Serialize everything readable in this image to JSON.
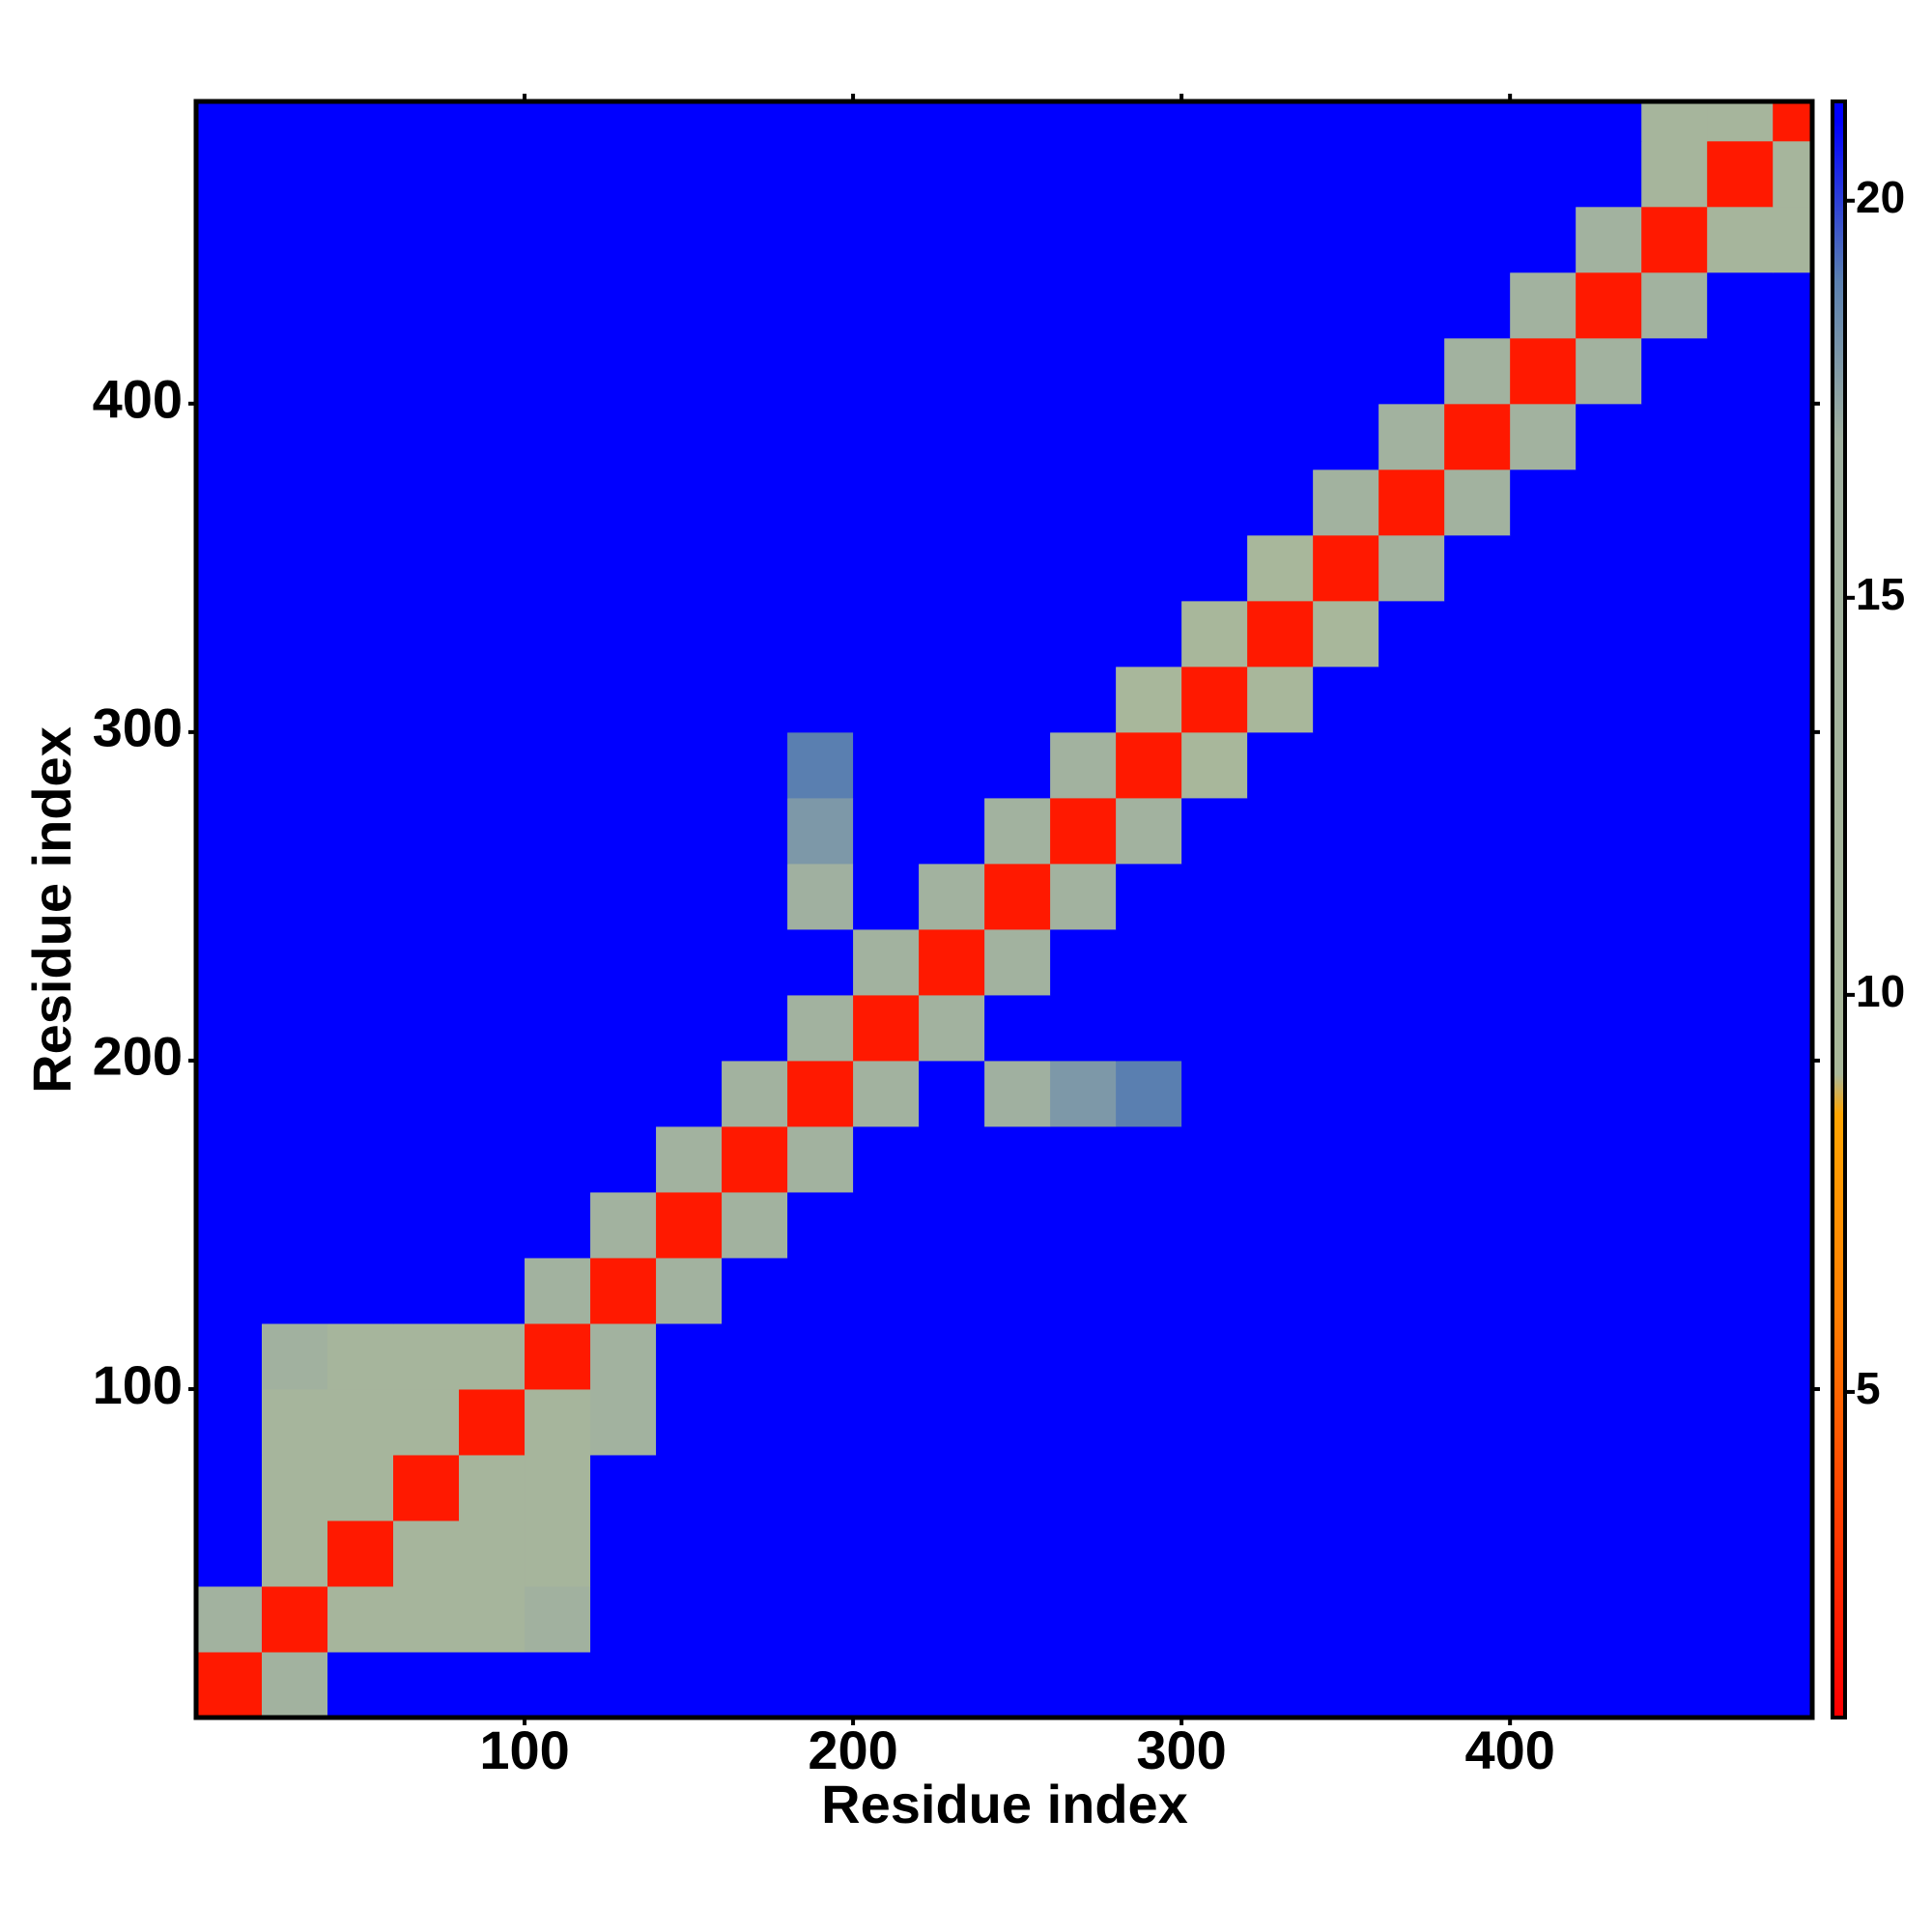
{
  "chart_data": {
    "type": "heatmap",
    "xlabel": "Residue index",
    "ylabel": "Residue index",
    "xlim": [
      0,
      492
    ],
    "ylim": [
      0,
      492
    ],
    "xticks": [
      100,
      200,
      300,
      400
    ],
    "yticks": [
      100,
      200,
      300,
      400
    ],
    "bins": [
      0,
      20,
      40,
      60,
      80,
      100,
      120,
      140,
      160,
      180,
      200,
      220,
      240,
      260,
      280,
      300,
      320,
      340,
      360,
      380,
      400,
      420,
      440,
      460,
      480,
      492
    ],
    "values": [
      [
        2,
        15,
        21,
        21,
        21,
        21,
        21,
        21,
        21,
        21,
        21,
        21,
        21,
        21,
        21,
        21,
        21,
        21,
        21,
        21,
        21,
        21,
        21,
        21,
        21
      ],
      [
        15,
        2,
        12,
        12,
        12,
        16,
        21,
        21,
        21,
        21,
        21,
        21,
        21,
        21,
        21,
        21,
        21,
        21,
        21,
        21,
        21,
        21,
        21,
        21,
        21
      ],
      [
        21,
        12,
        2,
        12,
        12,
        12,
        21,
        21,
        21,
        21,
        21,
        21,
        21,
        21,
        21,
        21,
        21,
        21,
        21,
        21,
        21,
        21,
        21,
        21,
        21
      ],
      [
        21,
        12,
        12,
        2,
        12,
        12,
        21,
        21,
        21,
        21,
        21,
        21,
        21,
        21,
        21,
        21,
        21,
        21,
        21,
        21,
        21,
        21,
        21,
        21,
        21
      ],
      [
        21,
        12,
        12,
        12,
        2,
        12,
        15,
        21,
        21,
        21,
        21,
        21,
        21,
        21,
        21,
        21,
        21,
        21,
        21,
        21,
        21,
        21,
        21,
        21,
        21
      ],
      [
        21,
        16,
        12,
        12,
        12,
        2,
        15,
        21,
        21,
        21,
        21,
        21,
        21,
        21,
        21,
        21,
        21,
        21,
        21,
        21,
        21,
        21,
        21,
        21,
        21
      ],
      [
        21,
        21,
        21,
        21,
        21,
        15,
        2,
        15,
        21,
        21,
        21,
        21,
        21,
        21,
        21,
        21,
        21,
        21,
        21,
        21,
        21,
        21,
        21,
        21,
        21
      ],
      [
        21,
        21,
        21,
        21,
        21,
        21,
        15,
        2,
        15,
        21,
        21,
        21,
        21,
        21,
        21,
        21,
        21,
        21,
        21,
        21,
        21,
        21,
        21,
        21,
        21
      ],
      [
        21,
        21,
        21,
        21,
        21,
        21,
        21,
        15,
        2,
        15,
        21,
        21,
        21,
        21,
        21,
        21,
        21,
        21,
        21,
        21,
        21,
        21,
        21,
        21,
        21
      ],
      [
        21,
        21,
        21,
        21,
        21,
        21,
        21,
        21,
        15,
        2,
        15,
        21,
        17,
        18,
        19,
        21,
        21,
        21,
        21,
        21,
        21,
        21,
        21,
        21,
        21
      ],
      [
        21,
        21,
        21,
        21,
        21,
        21,
        21,
        21,
        21,
        15,
        2,
        15,
        21,
        21,
        21,
        21,
        21,
        21,
        21,
        21,
        21,
        21,
        21,
        21,
        21
      ],
      [
        21,
        21,
        21,
        21,
        21,
        21,
        21,
        21,
        21,
        21,
        15,
        2,
        15,
        21,
        21,
        21,
        21,
        21,
        21,
        21,
        21,
        21,
        21,
        21,
        21
      ],
      [
        21,
        21,
        21,
        21,
        21,
        21,
        21,
        21,
        21,
        17,
        21,
        15,
        2,
        15,
        21,
        21,
        21,
        21,
        21,
        21,
        21,
        21,
        21,
        21,
        21
      ],
      [
        21,
        21,
        21,
        21,
        21,
        21,
        21,
        21,
        21,
        18,
        21,
        21,
        15,
        2,
        15,
        21,
        21,
        21,
        21,
        21,
        21,
        21,
        21,
        21,
        21
      ],
      [
        21,
        21,
        21,
        21,
        21,
        21,
        21,
        21,
        21,
        19,
        21,
        21,
        21,
        15,
        2,
        10,
        21,
        21,
        21,
        21,
        21,
        21,
        21,
        21,
        21
      ],
      [
        21,
        21,
        21,
        21,
        21,
        21,
        21,
        21,
        21,
        21,
        21,
        21,
        21,
        21,
        10,
        2,
        10,
        21,
        21,
        21,
        21,
        21,
        21,
        21,
        21
      ],
      [
        21,
        21,
        21,
        21,
        21,
        21,
        21,
        21,
        21,
        21,
        21,
        21,
        21,
        21,
        21,
        10,
        2,
        10,
        21,
        21,
        21,
        21,
        21,
        21,
        21
      ],
      [
        21,
        21,
        21,
        21,
        21,
        21,
        21,
        21,
        21,
        21,
        21,
        21,
        21,
        21,
        21,
        21,
        10,
        2,
        15,
        21,
        21,
        21,
        21,
        21,
        21
      ],
      [
        21,
        21,
        21,
        21,
        21,
        21,
        21,
        21,
        21,
        21,
        21,
        21,
        21,
        21,
        21,
        21,
        21,
        15,
        2,
        15,
        21,
        21,
        21,
        21,
        21
      ],
      [
        21,
        21,
        21,
        21,
        21,
        21,
        21,
        21,
        21,
        21,
        21,
        21,
        21,
        21,
        21,
        21,
        21,
        21,
        15,
        2,
        15,
        21,
        21,
        21,
        21
      ],
      [
        21,
        21,
        21,
        21,
        21,
        21,
        21,
        21,
        21,
        21,
        21,
        21,
        21,
        21,
        21,
        21,
        21,
        21,
        21,
        15,
        2,
        15,
        21,
        21,
        21
      ],
      [
        21,
        21,
        21,
        21,
        21,
        21,
        21,
        21,
        21,
        21,
        21,
        21,
        21,
        21,
        21,
        21,
        21,
        21,
        21,
        21,
        15,
        2,
        15,
        21,
        21
      ],
      [
        21,
        21,
        21,
        21,
        21,
        21,
        21,
        21,
        21,
        21,
        21,
        21,
        21,
        21,
        21,
        21,
        21,
        21,
        21,
        21,
        21,
        15,
        2,
        12,
        12
      ],
      [
        21,
        21,
        21,
        21,
        21,
        21,
        21,
        21,
        21,
        21,
        21,
        21,
        21,
        21,
        21,
        21,
        21,
        21,
        21,
        21,
        21,
        21,
        12,
        2,
        12
      ],
      [
        21,
        21,
        21,
        21,
        21,
        21,
        21,
        21,
        21,
        21,
        21,
        21,
        21,
        21,
        21,
        21,
        21,
        21,
        21,
        21,
        21,
        21,
        12,
        12,
        2
      ]
    ],
    "colorbar_lim": [
      0.9,
      21.25
    ],
    "colorbar_ticks": [
      5,
      10,
      15,
      20
    ],
    "colorscale": [
      [
        1,
        "#ff0000"
      ],
      [
        6,
        "#ff7f00"
      ],
      [
        8.5,
        "#ffa500"
      ],
      [
        9,
        "#a9b89a"
      ],
      [
        17,
        "#a0b0a0"
      ],
      [
        19,
        "#5a7fb0"
      ],
      [
        21,
        "#0000ff"
      ]
    ]
  }
}
